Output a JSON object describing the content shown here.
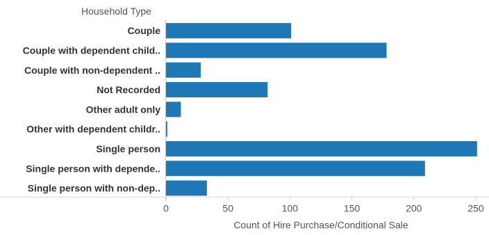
{
  "chart_data": {
    "type": "bar",
    "orientation": "horizontal",
    "row_header": "Household Type",
    "categories": [
      "Couple",
      "Couple with dependent child..",
      "Couple with non-dependent ..",
      "Not Recorded",
      "Other adult only",
      "Other with dependent childr..",
      "Single person",
      "Single person with depende..",
      "Single person with non-dep.."
    ],
    "values": [
      101,
      178,
      28,
      82,
      12,
      1,
      251,
      209,
      33
    ],
    "xlabel": "Count of Hire Purchase/Conditional Sale",
    "xlim": [
      0,
      250
    ],
    "xticks": [
      0,
      50,
      100,
      150,
      200,
      250
    ],
    "grid": false,
    "legend": "none",
    "bar_color": "#1f77b4"
  }
}
